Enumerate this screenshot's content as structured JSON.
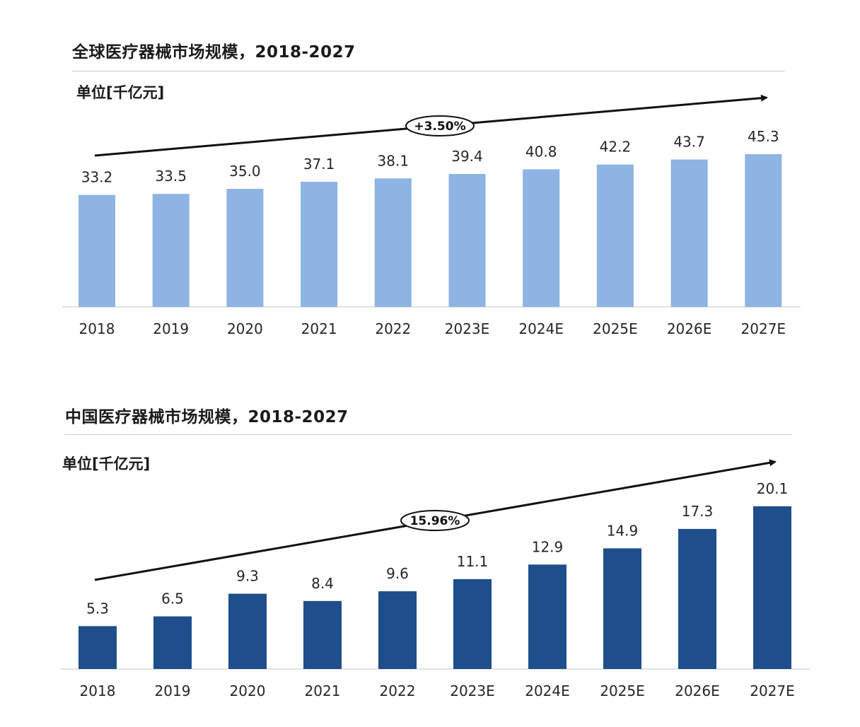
{
  "chart_data": [
    {
      "type": "bar",
      "title": "全球医疗器械市场规模，2018-2027",
      "unit_label": "单位[千亿元]",
      "categories": [
        "2018",
        "2019",
        "2020",
        "2021",
        "2022",
        "2023E",
        "2024E",
        "2025E",
        "2026E",
        "2027E"
      ],
      "values": [
        33.2,
        33.5,
        35.0,
        37.1,
        38.1,
        39.4,
        40.8,
        42.2,
        43.7,
        45.3
      ],
      "value_labels": [
        "33.2",
        "33.5",
        "35.0",
        "37.1",
        "38.1",
        "39.4",
        "40.8",
        "42.2",
        "43.7",
        "45.3"
      ],
      "cagr_label": "+3.50%",
      "bar_color": "#8db4e2",
      "ylim": [
        0,
        50
      ],
      "grid": false,
      "legend": "none"
    },
    {
      "type": "bar",
      "title": "中国医疗器械市场规模，2018-2027",
      "unit_label": "单位[千亿元]",
      "categories": [
        "2018",
        "2019",
        "2020",
        "2021",
        "2022",
        "2023E",
        "2024E",
        "2025E",
        "2026E",
        "2027E"
      ],
      "values": [
        5.3,
        6.5,
        9.3,
        8.4,
        9.6,
        11.1,
        12.9,
        14.9,
        17.3,
        20.1
      ],
      "value_labels": [
        "5.3",
        "6.5",
        "9.3",
        "8.4",
        "9.6",
        "11.1",
        "12.9",
        "14.9",
        "17.3",
        "20.1"
      ],
      "cagr_label": "15.96%",
      "bar_color": "#1f4e8c",
      "ylim": [
        0,
        24
      ],
      "grid": false,
      "legend": "none"
    }
  ]
}
